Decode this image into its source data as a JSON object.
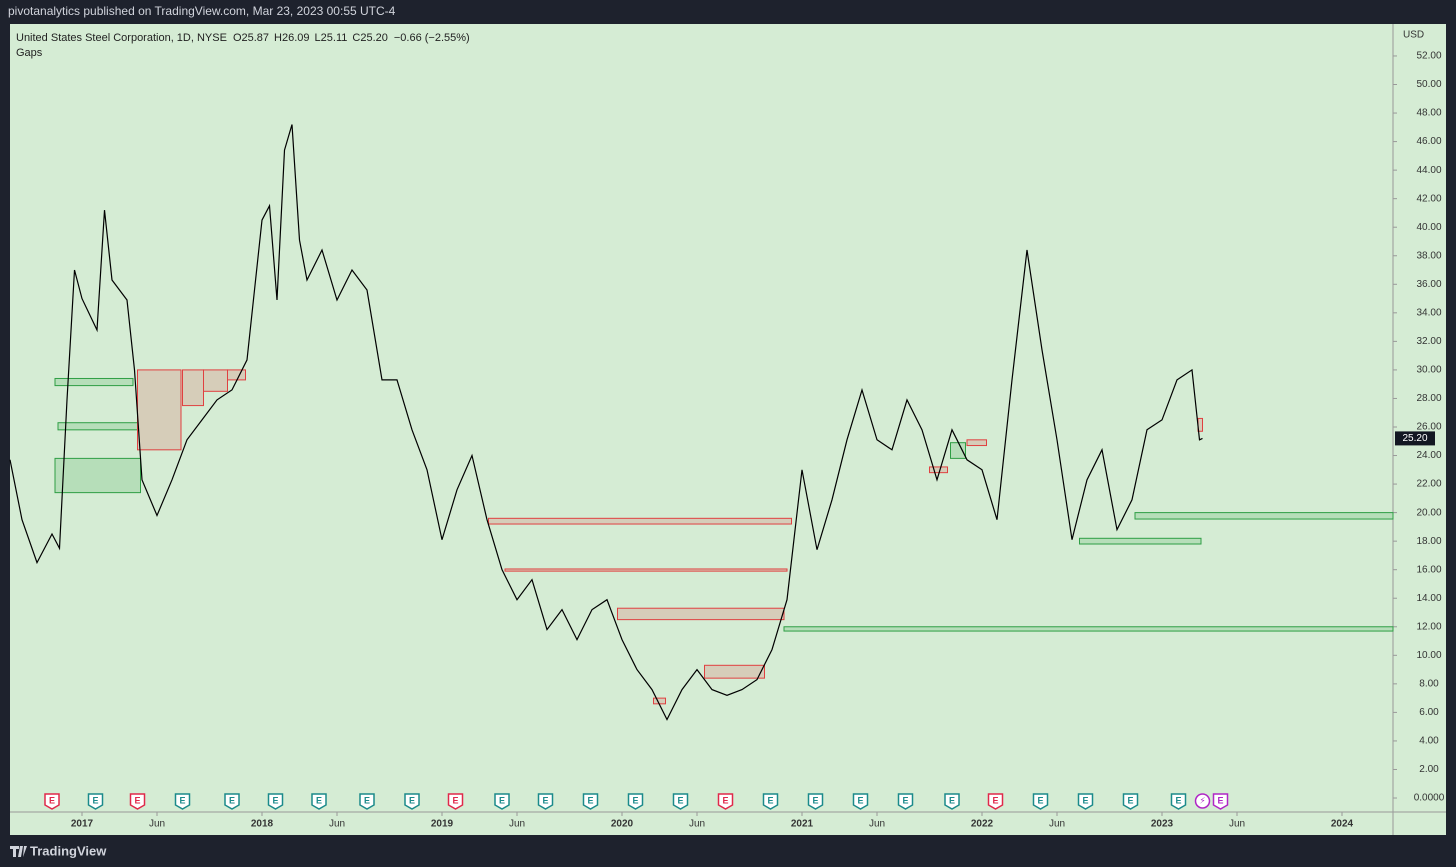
{
  "chart_data": {
    "type": "line",
    "publisher": "pivotanalytics published on TradingView.com, Mar 23, 2023 00:55 UTC-4",
    "symbol": "United States Steel Corporation, 1D, NYSE",
    "ohlc": [
      {
        "label": "O",
        "value": "25.87"
      },
      {
        "label": "H",
        "value": "26.09"
      },
      {
        "label": "L",
        "value": "25.11"
      },
      {
        "label": "C",
        "value": "25.20"
      }
    ],
    "change": "−0.66 (−2.55%)",
    "indicator": "Gaps",
    "currency": "USD",
    "last_price": {
      "value": 25.2,
      "label": "25.20"
    },
    "brand": "TradingView",
    "background": "#d5ecd4",
    "xlim": [
      -4.8,
      87.4
    ],
    "xticks": [
      {
        "value": 0,
        "label": "2017"
      },
      {
        "value": 5,
        "label": "Jun"
      },
      {
        "value": 12,
        "label": "2018"
      },
      {
        "value": 17,
        "label": "Jun"
      },
      {
        "value": 24,
        "label": "2019"
      },
      {
        "value": 29,
        "label": "Jun"
      },
      {
        "value": 36,
        "label": "2020"
      },
      {
        "value": 41,
        "label": "Jun"
      },
      {
        "value": 48,
        "label": "2021"
      },
      {
        "value": 53,
        "label": "Jun"
      },
      {
        "value": 60,
        "label": "2022"
      },
      {
        "value": 65,
        "label": "Jun"
      },
      {
        "value": 72,
        "label": "2023"
      },
      {
        "value": 77,
        "label": "Jun"
      },
      {
        "value": 84,
        "label": "2024"
      }
    ],
    "ylim": [
      -0.98,
      54.24
    ],
    "yticks": [
      {
        "value": 0,
        "label": "0.0000"
      },
      {
        "value": 2,
        "label": "2.00"
      },
      {
        "value": 4,
        "label": "4.00"
      },
      {
        "value": 6,
        "label": "6.00"
      },
      {
        "value": 8,
        "label": "8.00"
      },
      {
        "value": 10,
        "label": "10.00"
      },
      {
        "value": 12,
        "label": "12.00"
      },
      {
        "value": 14,
        "label": "14.00"
      },
      {
        "value": 16,
        "label": "16.00"
      },
      {
        "value": 18,
        "label": "18.00"
      },
      {
        "value": 20,
        "label": "20.00"
      },
      {
        "value": 22,
        "label": "22.00"
      },
      {
        "value": 24,
        "label": "24.00"
      },
      {
        "value": 26,
        "label": "26.00"
      },
      {
        "value": 28,
        "label": "28.00"
      },
      {
        "value": 30,
        "label": "30.00"
      },
      {
        "value": 32,
        "label": "32.00"
      },
      {
        "value": 34,
        "label": "34.00"
      },
      {
        "value": 36,
        "label": "36.00"
      },
      {
        "value": 38,
        "label": "38.00"
      },
      {
        "value": 40,
        "label": "40.00"
      },
      {
        "value": 42,
        "label": "42.00"
      },
      {
        "value": 44,
        "label": "44.00"
      },
      {
        "value": 46,
        "label": "46.00"
      },
      {
        "value": 48,
        "label": "48.00"
      },
      {
        "value": 50,
        "label": "50.00"
      },
      {
        "value": 52,
        "label": "52.00"
      }
    ],
    "x": [
      -4.8,
      -4,
      -3,
      -2,
      -1.5,
      -1,
      -0.5,
      0,
      1,
      1.5,
      2,
      3,
      3.5,
      4,
      5,
      6,
      7,
      8,
      9,
      10,
      11,
      12,
      12.5,
      13,
      13.5,
      14,
      14.5,
      15,
      16,
      17,
      18,
      19,
      20,
      21,
      22,
      23,
      24,
      25,
      26,
      27,
      28,
      29,
      30,
      31,
      32,
      33,
      34,
      35,
      36,
      37,
      38,
      39,
      40,
      41,
      42,
      43,
      44,
      45,
      46,
      47,
      48,
      49,
      50,
      51,
      52,
      53,
      54,
      55,
      56,
      57,
      58,
      59,
      60,
      61,
      62,
      63,
      64,
      65,
      66,
      67,
      68,
      69,
      70,
      71,
      72,
      73,
      74,
      74.5,
      74.7
    ],
    "series": [
      {
        "name": "US Steel",
        "color": "#000000",
        "values": [
          23.7,
          19.5,
          16.5,
          18.5,
          17.5,
          27.9,
          37,
          35,
          32.8,
          41.2,
          36.3,
          34.9,
          30,
          22.3,
          19.8,
          22.3,
          25.1,
          26.5,
          27.9,
          28.6,
          30.7,
          40.5,
          41.5,
          34.9,
          45.4,
          47.2,
          39.1,
          36.3,
          38.4,
          34.9,
          37,
          35.6,
          29.3,
          29.3,
          25.8,
          23,
          18.1,
          21.6,
          24,
          19.5,
          16,
          13.9,
          15.3,
          11.8,
          13.2,
          11.1,
          13.2,
          13.9,
          11.1,
          9,
          7.6,
          5.5,
          7.6,
          9,
          7.6,
          7.2,
          7.6,
          8.3,
          10.4,
          13.9,
          23,
          17.4,
          20.9,
          25.1,
          28.6,
          25.1,
          24.4,
          27.9,
          25.8,
          22.3,
          25.8,
          23.7,
          23,
          19.5,
          29.3,
          38.4,
          31.4,
          25.1,
          18.1,
          22.3,
          24.4,
          18.8,
          20.9,
          25.8,
          26.5,
          29.3,
          30,
          25.1,
          25.2
        ]
      }
    ],
    "gaps": [
      {
        "x": [
          -1.8,
          3.4
        ],
        "range": [
          28.9,
          29.4
        ],
        "color": "#2e9e44"
      },
      {
        "x": [
          -1.6,
          3.7
        ],
        "range": [
          25.8,
          26.3
        ],
        "color": "#2e9e44"
      },
      {
        "x": [
          -1.8,
          3.9
        ],
        "range": [
          21.4,
          23.8
        ],
        "color": "#2e9e44"
      },
      {
        "x": [
          3.7,
          6.6
        ],
        "range": [
          24.4,
          30
        ],
        "color": "#e04040"
      },
      {
        "x": [
          6.7,
          8.1
        ],
        "range": [
          27.5,
          30
        ],
        "color": "#e04040"
      },
      {
        "x": [
          8.1,
          9.7
        ],
        "range": [
          28.5,
          30
        ],
        "color": "#e04040"
      },
      {
        "x": [
          9.7,
          10.9
        ],
        "range": [
          29.3,
          30
        ],
        "color": "#e04040"
      },
      {
        "x": [
          27.1,
          47.3
        ],
        "range": [
          19.2,
          19.6
        ],
        "color": "#e04040"
      },
      {
        "x": [
          28.2,
          47
        ],
        "range": [
          15.9,
          16.05
        ],
        "color": "#e04040"
      },
      {
        "x": [
          35.7,
          46.8
        ],
        "range": [
          12.5,
          13.3
        ],
        "color": "#e04040"
      },
      {
        "x": [
          41.5,
          45.5
        ],
        "range": [
          8.4,
          9.3
        ],
        "color": "#e04040"
      },
      {
        "x": [
          38.1,
          38.9
        ],
        "range": [
          6.6,
          7
        ],
        "color": "#e04040"
      },
      {
        "x": [
          46.8,
          87.4
        ],
        "range": [
          11.7,
          12
        ],
        "color": "#2e9e44"
      },
      {
        "x": [
          70.2,
          87.4
        ],
        "range": [
          19.55,
          20
        ],
        "color": "#2e9e44"
      },
      {
        "x": [
          66.5,
          74.6
        ],
        "range": [
          17.8,
          18.2
        ],
        "color": "#2e9e44"
      },
      {
        "x": [
          74.4,
          74.7
        ],
        "range": [
          25.7,
          26.6
        ],
        "color": "#e04040"
      },
      {
        "x": [
          57.9,
          58.9
        ],
        "range": [
          23.8,
          24.9
        ],
        "color": "#2e9e44"
      },
      {
        "x": [
          59,
          60.3
        ],
        "range": [
          24.7,
          25.1
        ],
        "color": "#e04040"
      },
      {
        "x": [
          56.5,
          57.7
        ],
        "range": [
          22.8,
          23.2
        ],
        "color": "#e04040"
      }
    ],
    "events": [
      {
        "x": -2,
        "label": "E",
        "color": "#e0284a"
      },
      {
        "x": 0.9,
        "label": "E",
        "color": "#1b8a8a"
      },
      {
        "x": 3.7,
        "label": "E",
        "color": "#e0284a"
      },
      {
        "x": 6.7,
        "label": "E",
        "color": "#1b8a8a"
      },
      {
        "x": 10,
        "label": "E",
        "color": "#1b8a8a"
      },
      {
        "x": 12.9,
        "label": "E",
        "color": "#1b8a8a"
      },
      {
        "x": 15.8,
        "label": "E",
        "color": "#1b8a8a"
      },
      {
        "x": 19,
        "label": "E",
        "color": "#1b8a8a"
      },
      {
        "x": 22,
        "label": "E",
        "color": "#1b8a8a"
      },
      {
        "x": 24.9,
        "label": "E",
        "color": "#e0284a"
      },
      {
        "x": 28,
        "label": "E",
        "color": "#1b8a8a"
      },
      {
        "x": 30.9,
        "label": "E",
        "color": "#1b8a8a"
      },
      {
        "x": 33.9,
        "label": "E",
        "color": "#1b8a8a"
      },
      {
        "x": 36.9,
        "label": "E",
        "color": "#1b8a8a"
      },
      {
        "x": 39.9,
        "label": "E",
        "color": "#1b8a8a"
      },
      {
        "x": 42.9,
        "label": "E",
        "color": "#e0284a"
      },
      {
        "x": 45.9,
        "label": "E",
        "color": "#1b8a8a"
      },
      {
        "x": 48.9,
        "label": "E",
        "color": "#1b8a8a"
      },
      {
        "x": 51.9,
        "label": "E",
        "color": "#1b8a8a"
      },
      {
        "x": 54.9,
        "label": "E",
        "color": "#1b8a8a"
      },
      {
        "x": 58,
        "label": "E",
        "color": "#1b8a8a"
      },
      {
        "x": 60.9,
        "label": "E",
        "color": "#e0284a"
      },
      {
        "x": 63.9,
        "label": "E",
        "color": "#1b8a8a"
      },
      {
        "x": 66.9,
        "label": "E",
        "color": "#1b8a8a"
      },
      {
        "x": 69.9,
        "label": "E",
        "color": "#1b8a8a"
      },
      {
        "x": 73.1,
        "label": "E",
        "color": "#1b8a8a"
      },
      {
        "x": 74.7,
        "label": "⚡",
        "color": "#b026c6"
      },
      {
        "x": 75.9,
        "label": "E",
        "color": "#b026c6"
      }
    ]
  }
}
